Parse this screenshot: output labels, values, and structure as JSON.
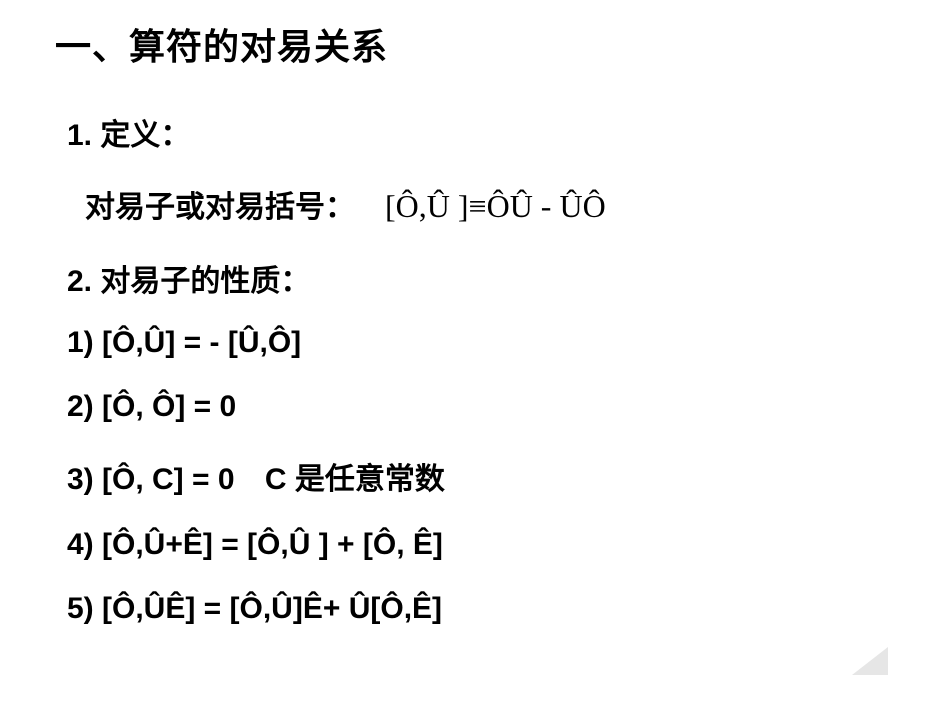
{
  "title": "一、算符的对易关系",
  "definition": {
    "label": "1. 定义：",
    "term": "对易子或对易括号：",
    "formula": "[Ô,Û ]≡ÔÛ - ÛÔ"
  },
  "propertiesLabel": "2. 对易子的性质：",
  "properties": [
    {
      "text": "1) [Ô,Û] = - [Û,Ô]",
      "note": ""
    },
    {
      "text": "2) [Ô, Ô] = 0",
      "note": ""
    },
    {
      "text": "3) [Ô, C] = 0",
      "note": "C 是任意常数"
    },
    {
      "text": "4) [Ô,Û+Ê] = [Ô,Û ] + [Ô, Ê]",
      "note": ""
    },
    {
      "text": "5) [Ô,ÛÊ] = [Ô,Û]Ê+ Û[Ô,Ê]",
      "note": ""
    }
  ],
  "style": {
    "background": "#ffffff",
    "text_color": "#000000",
    "title_fontsize": 36,
    "body_fontsize": 30,
    "formula_fontsize": 32,
    "corner_color": "#e6e6e6"
  }
}
